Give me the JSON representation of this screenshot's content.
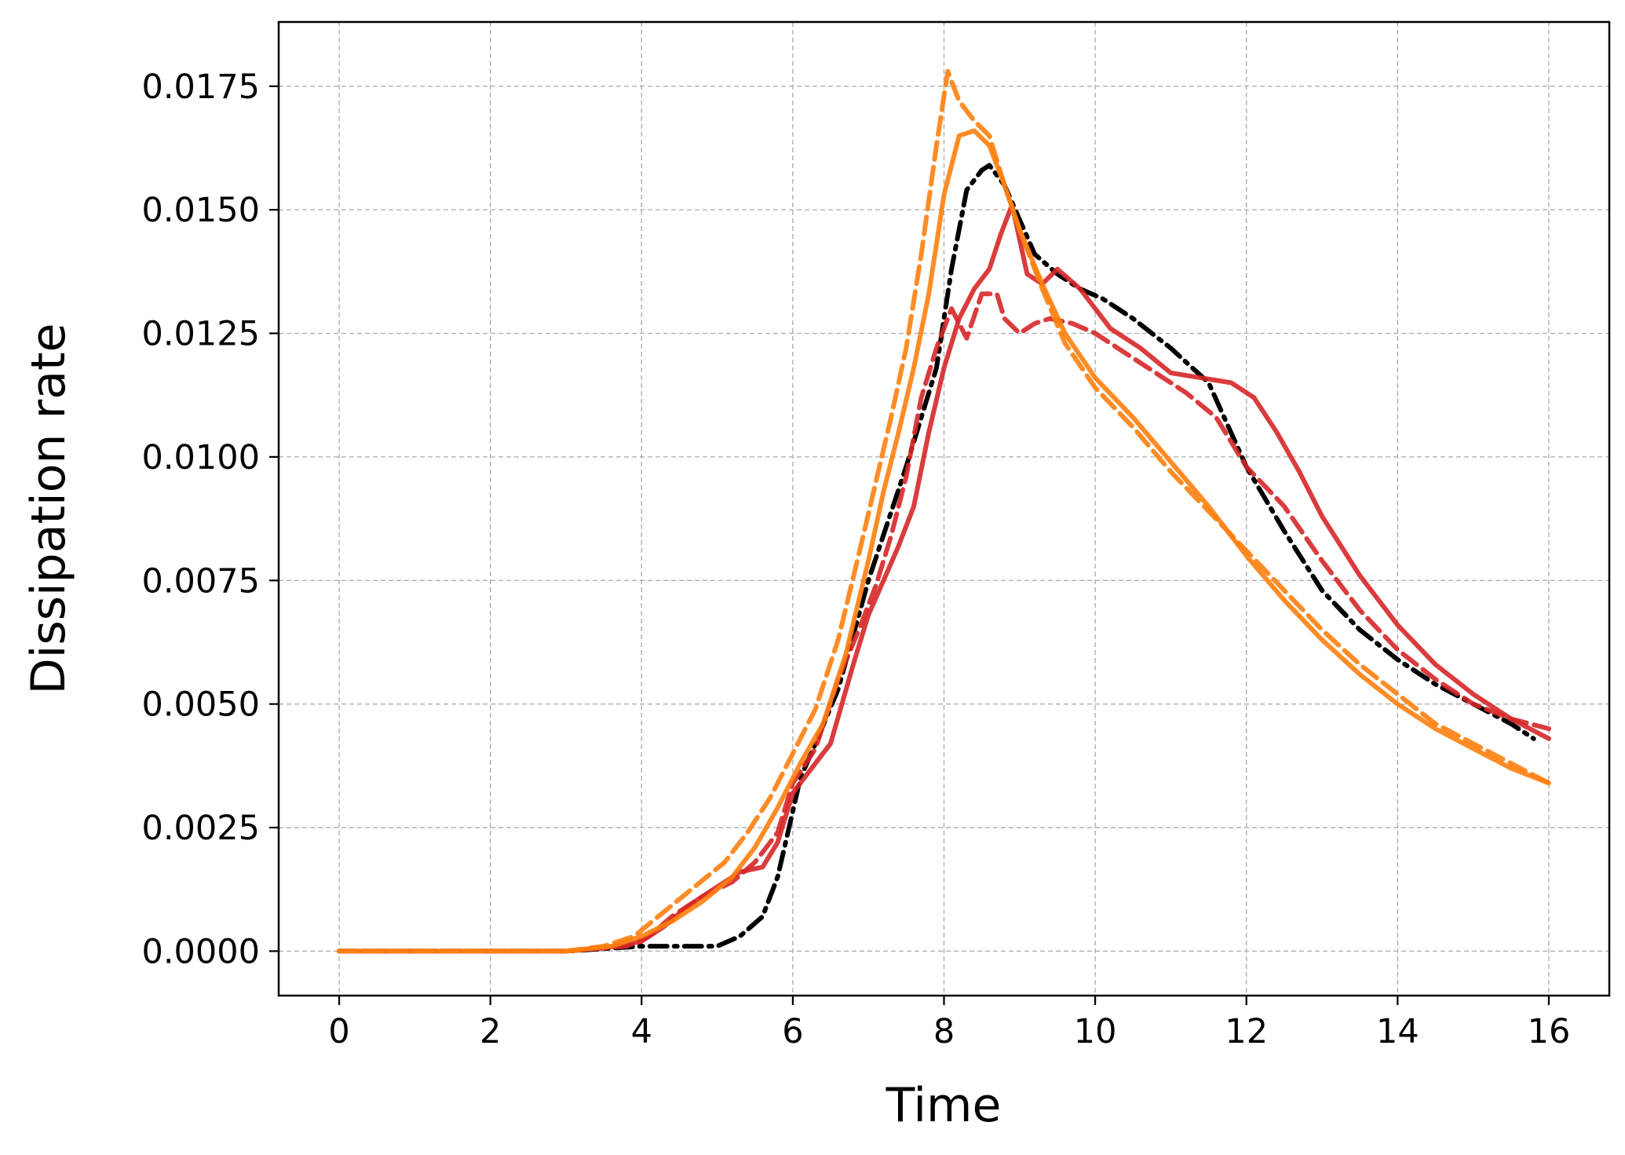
{
  "chart_data": {
    "type": "line",
    "title": "",
    "xlabel": "Time",
    "ylabel": "Dissipation rate",
    "xlim": [
      -0.8,
      16.8
    ],
    "ylim": [
      -0.0009,
      0.0188
    ],
    "x_ticks": [
      0,
      2,
      4,
      6,
      8,
      10,
      12,
      14,
      16
    ],
    "x_tick_labels": [
      "0",
      "2",
      "4",
      "6",
      "8",
      "10",
      "12",
      "14",
      "16"
    ],
    "y_ticks": [
      0.0,
      0.0025,
      0.005,
      0.0075,
      0.01,
      0.0125,
      0.015,
      0.0175
    ],
    "y_tick_labels": [
      "0.0000",
      "0.0025",
      "0.0050",
      "0.0075",
      "0.0100",
      "0.0125",
      "0.0150",
      "0.0175"
    ],
    "grid": true,
    "legend": "none",
    "series": [
      {
        "color": "#000000",
        "style": "dashdot",
        "x": [
          0,
          1,
          2,
          3,
          4,
          4.5,
          5,
          5.3,
          5.6,
          5.8,
          5.95,
          6.1,
          6.3,
          6.6,
          7.0,
          7.5,
          7.9,
          8.1,
          8.3,
          8.5,
          8.6,
          8.8,
          9.0,
          9.2,
          9.5,
          9.8,
          10.1,
          10.5,
          11.0,
          11.5,
          12.0,
          12.5,
          13.0,
          13.5,
          14.0,
          14.5,
          15.0,
          15.5,
          15.8
        ],
        "y": [
          0.0,
          0.0,
          0.0,
          0.0,
          0.0001,
          0.0001,
          0.0001,
          0.0003,
          0.0007,
          0.0015,
          0.0025,
          0.0035,
          0.0042,
          0.0053,
          0.0075,
          0.0098,
          0.0118,
          0.0138,
          0.0154,
          0.0158,
          0.0159,
          0.0155,
          0.0148,
          0.0141,
          0.0137,
          0.0134,
          0.0132,
          0.0128,
          0.0122,
          0.0115,
          0.0098,
          0.0085,
          0.0073,
          0.0065,
          0.0059,
          0.0054,
          0.005,
          0.0046,
          0.0043
        ]
      },
      {
        "color": "#d62728",
        "style": "solid",
        "x": [
          0,
          3,
          3.7,
          4.0,
          4.3,
          4.6,
          5.0,
          5.3,
          5.6,
          5.8,
          6.0,
          6.2,
          6.5,
          6.8,
          7.0,
          7.2,
          7.4,
          7.6,
          7.8,
          8.0,
          8.2,
          8.4,
          8.6,
          8.75,
          8.9,
          9.1,
          9.3,
          9.5,
          9.8,
          10.2,
          10.6,
          11.0,
          11.4,
          11.8,
          12.1,
          12.4,
          12.7,
          13.0,
          13.5,
          14.0,
          14.5,
          15.0,
          15.5,
          16.0
        ],
        "y": [
          0.0,
          0.0,
          0.0001,
          0.0002,
          0.0005,
          0.0009,
          0.0013,
          0.0016,
          0.0017,
          0.0022,
          0.0032,
          0.0036,
          0.0042,
          0.0058,
          0.0068,
          0.0075,
          0.0082,
          0.009,
          0.0105,
          0.0118,
          0.0128,
          0.0134,
          0.0138,
          0.0145,
          0.0151,
          0.0137,
          0.0135,
          0.0138,
          0.0134,
          0.0126,
          0.0122,
          0.0117,
          0.0116,
          0.0115,
          0.0112,
          0.0105,
          0.0097,
          0.0088,
          0.0076,
          0.0066,
          0.0058,
          0.0052,
          0.0047,
          0.0043
        ]
      },
      {
        "color": "#d62728",
        "style": "dashed",
        "x": [
          0,
          3,
          3.8,
          4.1,
          4.4,
          4.8,
          5.2,
          5.5,
          5.8,
          6.0,
          6.3,
          6.6,
          6.9,
          7.1,
          7.3,
          7.5,
          7.7,
          7.9,
          8.1,
          8.3,
          8.5,
          8.7,
          8.8,
          9.0,
          9.2,
          9.4,
          9.7,
          10.0,
          10.4,
          10.8,
          11.2,
          11.6,
          12.0,
          12.5,
          13.0,
          13.5,
          14.0,
          14.5,
          15.0,
          15.5,
          16.0
        ],
        "y": [
          0.0,
          0.0,
          0.0001,
          0.0003,
          0.0007,
          0.0011,
          0.0014,
          0.0018,
          0.0024,
          0.0034,
          0.0041,
          0.0055,
          0.0066,
          0.0074,
          0.0084,
          0.0096,
          0.0112,
          0.0122,
          0.013,
          0.0124,
          0.0133,
          0.0133,
          0.0128,
          0.0125,
          0.0127,
          0.0128,
          0.0127,
          0.0125,
          0.0121,
          0.0117,
          0.0113,
          0.0108,
          0.0098,
          0.009,
          0.0079,
          0.0069,
          0.0061,
          0.0055,
          0.005,
          0.0047,
          0.0045
        ]
      },
      {
        "color": "#ff7f0e",
        "style": "solid",
        "x": [
          0,
          3,
          3.6,
          4.0,
          4.4,
          4.8,
          5.2,
          5.5,
          5.8,
          6.1,
          6.4,
          6.7,
          7.0,
          7.2,
          7.4,
          7.6,
          7.8,
          8.0,
          8.2,
          8.4,
          8.6,
          8.8,
          9.0,
          9.3,
          9.6,
          10.0,
          10.5,
          11.0,
          11.5,
          12.0,
          12.5,
          13.0,
          13.5,
          14.0,
          14.5,
          15.0,
          15.5,
          16.0
        ],
        "y": [
          0.0,
          0.0,
          0.0001,
          0.0003,
          0.0006,
          0.001,
          0.0015,
          0.0021,
          0.0029,
          0.0038,
          0.0046,
          0.006,
          0.0079,
          0.0093,
          0.0105,
          0.0118,
          0.0133,
          0.0153,
          0.0165,
          0.0166,
          0.0163,
          0.0155,
          0.0146,
          0.0135,
          0.0125,
          0.0116,
          0.0108,
          0.0099,
          0.009,
          0.008,
          0.0071,
          0.0063,
          0.0056,
          0.005,
          0.0045,
          0.0041,
          0.0037,
          0.0034
        ]
      },
      {
        "color": "#ff7f0e",
        "style": "dashed",
        "x": [
          0,
          3,
          3.5,
          3.9,
          4.3,
          4.7,
          5.1,
          5.4,
          5.7,
          6.0,
          6.3,
          6.6,
          6.9,
          7.1,
          7.3,
          7.5,
          7.7,
          7.9,
          8.05,
          8.2,
          8.4,
          8.6,
          8.8,
          9.0,
          9.3,
          9.6,
          10.0,
          10.5,
          11.0,
          11.5,
          12.0,
          12.5,
          13.0,
          13.5,
          14.0,
          14.5,
          15.0,
          15.5,
          16.0
        ],
        "y": [
          0.0,
          0.0,
          0.0001,
          0.0003,
          0.0008,
          0.0013,
          0.0018,
          0.0024,
          0.0031,
          0.004,
          0.0049,
          0.0063,
          0.0082,
          0.0095,
          0.0108,
          0.0122,
          0.0141,
          0.0163,
          0.0178,
          0.0172,
          0.0168,
          0.0165,
          0.0155,
          0.0146,
          0.0134,
          0.0123,
          0.0114,
          0.0106,
          0.0097,
          0.0089,
          0.0081,
          0.0073,
          0.0065,
          0.0058,
          0.0052,
          0.0046,
          0.0042,
          0.0038,
          0.0034
        ]
      }
    ]
  }
}
